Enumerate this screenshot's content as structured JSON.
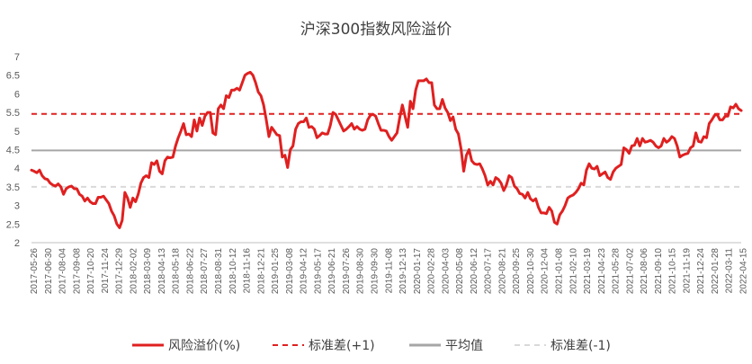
{
  "chart_data": {
    "type": "line",
    "title": "沪深300指数风险溢价",
    "ylim": [
      2,
      7
    ],
    "yticks": [
      "2",
      "2.5",
      "3",
      "3.5",
      "4",
      "4.5",
      "5",
      "5.5",
      "6",
      "6.5",
      "7"
    ],
    "x_tick_labels": [
      "2017-05-26",
      "2017-06-30",
      "2017-08-04",
      "2017-09-08",
      "2017-10-20",
      "2017-11-24",
      "2017-12-29",
      "2018-02-02",
      "2018-03-09",
      "2018-04-13",
      "2018-05-18",
      "2018-06-22",
      "2018-07-27",
      "2018-08-31",
      "2018-10-12",
      "2018-11-16",
      "2018-12-21",
      "2019-01-25",
      "2019-03-08",
      "2019-04-12",
      "2019-05-17",
      "2019-06-21",
      "2019-07-26",
      "2019-08-30",
      "2019-09-30",
      "2019-11-08",
      "2019-12-13",
      "2020-01-17",
      "2020-02-28",
      "2020-04-03",
      "2020-05-08",
      "2020-06-12",
      "2020-07-17",
      "2020-08-21",
      "2020-09-25",
      "2020-10-30",
      "2020-12-04",
      "2021-01-08",
      "2021-02-10",
      "2021-03-19",
      "2021-04-23",
      "2021-05-28",
      "2021-07-02",
      "2021-08-06",
      "2021-09-10",
      "2021-10-15",
      "2021-11-19",
      "2021-12-24",
      "2022-01-28",
      "2022-03-11",
      "2022-04-15"
    ],
    "series": [
      {
        "name": "风险溢价(%)",
        "color": "#e02020",
        "style": "solid",
        "values": [
          3.95,
          3.92,
          3.88,
          3.95,
          3.8,
          3.72,
          3.7,
          3.6,
          3.55,
          3.52,
          3.58,
          3.5,
          3.3,
          3.45,
          3.5,
          3.52,
          3.45,
          3.45,
          3.3,
          3.25,
          3.12,
          3.2,
          3.1,
          3.05,
          3.05,
          3.22,
          3.22,
          3.25,
          3.15,
          3.05,
          2.85,
          2.72,
          2.5,
          2.4,
          2.6,
          3.35,
          3.2,
          2.95,
          3.2,
          3.1,
          3.3,
          3.6,
          3.75,
          3.8,
          3.75,
          4.15,
          4.1,
          4.2,
          3.92,
          3.85,
          4.2,
          4.3,
          4.28,
          4.3,
          4.6,
          4.82,
          5.0,
          5.2,
          4.9,
          4.92,
          4.85,
          5.3,
          5.0,
          5.35,
          5.15,
          5.4,
          5.5,
          5.5,
          4.95,
          4.9,
          5.6,
          5.7,
          5.6,
          5.95,
          5.9,
          6.1,
          6.1,
          6.15,
          6.1,
          6.3,
          6.5,
          6.55,
          6.58,
          6.5,
          6.3,
          6.05,
          5.95,
          5.7,
          5.3,
          4.85,
          5.1,
          5.0,
          4.9,
          4.88,
          4.3,
          4.35,
          4.02,
          4.5,
          4.6,
          5.05,
          5.2,
          5.25,
          5.25,
          5.35,
          5.1,
          5.12,
          5.05,
          4.82,
          4.88,
          4.95,
          4.92,
          4.92,
          5.15,
          5.5,
          5.45,
          5.3,
          5.15,
          5.0,
          5.05,
          5.12,
          5.2,
          5.05,
          5.12,
          5.05,
          5.02,
          5.05,
          5.3,
          5.42,
          5.45,
          5.4,
          5.2,
          5.02,
          5.02,
          5.0,
          4.85,
          4.75,
          4.85,
          4.95,
          5.35,
          5.7,
          5.4,
          5.1,
          5.8,
          5.6,
          6.1,
          6.35,
          6.35,
          6.35,
          6.4,
          6.3,
          6.3,
          5.7,
          5.6,
          5.6,
          5.85,
          5.62,
          5.5,
          5.28,
          5.38,
          5.05,
          4.92,
          4.52,
          3.92,
          4.35,
          4.5,
          4.2,
          4.12,
          4.1,
          4.12,
          3.98,
          3.8,
          3.55,
          3.65,
          3.55,
          3.75,
          3.7,
          3.6,
          3.4,
          3.55,
          3.8,
          3.75,
          3.52,
          3.45,
          3.32,
          3.3,
          3.2,
          3.35,
          3.18,
          3.12,
          3.18,
          2.95,
          2.8,
          2.8,
          2.78,
          2.95,
          2.85,
          2.55,
          2.5,
          2.75,
          2.85,
          3.0,
          3.2,
          3.25,
          3.28,
          3.35,
          3.45,
          3.6,
          3.55,
          3.95,
          4.12,
          4.0,
          3.98,
          4.05,
          3.8,
          3.85,
          3.9,
          3.75,
          3.7,
          3.9,
          4.0,
          4.05,
          4.1,
          4.55,
          4.5,
          4.4,
          4.6,
          4.62,
          4.8,
          4.6,
          4.8,
          4.7,
          4.72,
          4.75,
          4.7,
          4.6,
          4.55,
          4.6,
          4.8,
          4.7,
          4.75,
          4.85,
          4.8,
          4.6,
          4.3,
          4.35,
          4.38,
          4.4,
          4.55,
          4.6,
          4.95,
          4.72,
          4.7,
          4.85,
          4.82,
          5.2,
          5.3,
          5.42,
          5.45,
          5.3,
          5.3,
          5.4,
          5.4,
          5.65,
          5.62,
          5.72,
          5.6,
          5.55
        ]
      },
      {
        "name": "标准差(+1)",
        "color": "#e02020",
        "style": "dashed",
        "values": [
          5.46
        ]
      },
      {
        "name": "平均值",
        "color": "#a6a6a6",
        "style": "solid",
        "values": [
          4.48
        ]
      },
      {
        "name": "标准差(-1)",
        "color": "#d9d9d9",
        "style": "dashed",
        "values": [
          3.5
        ]
      }
    ],
    "legend_position": "bottom",
    "grid": false
  }
}
